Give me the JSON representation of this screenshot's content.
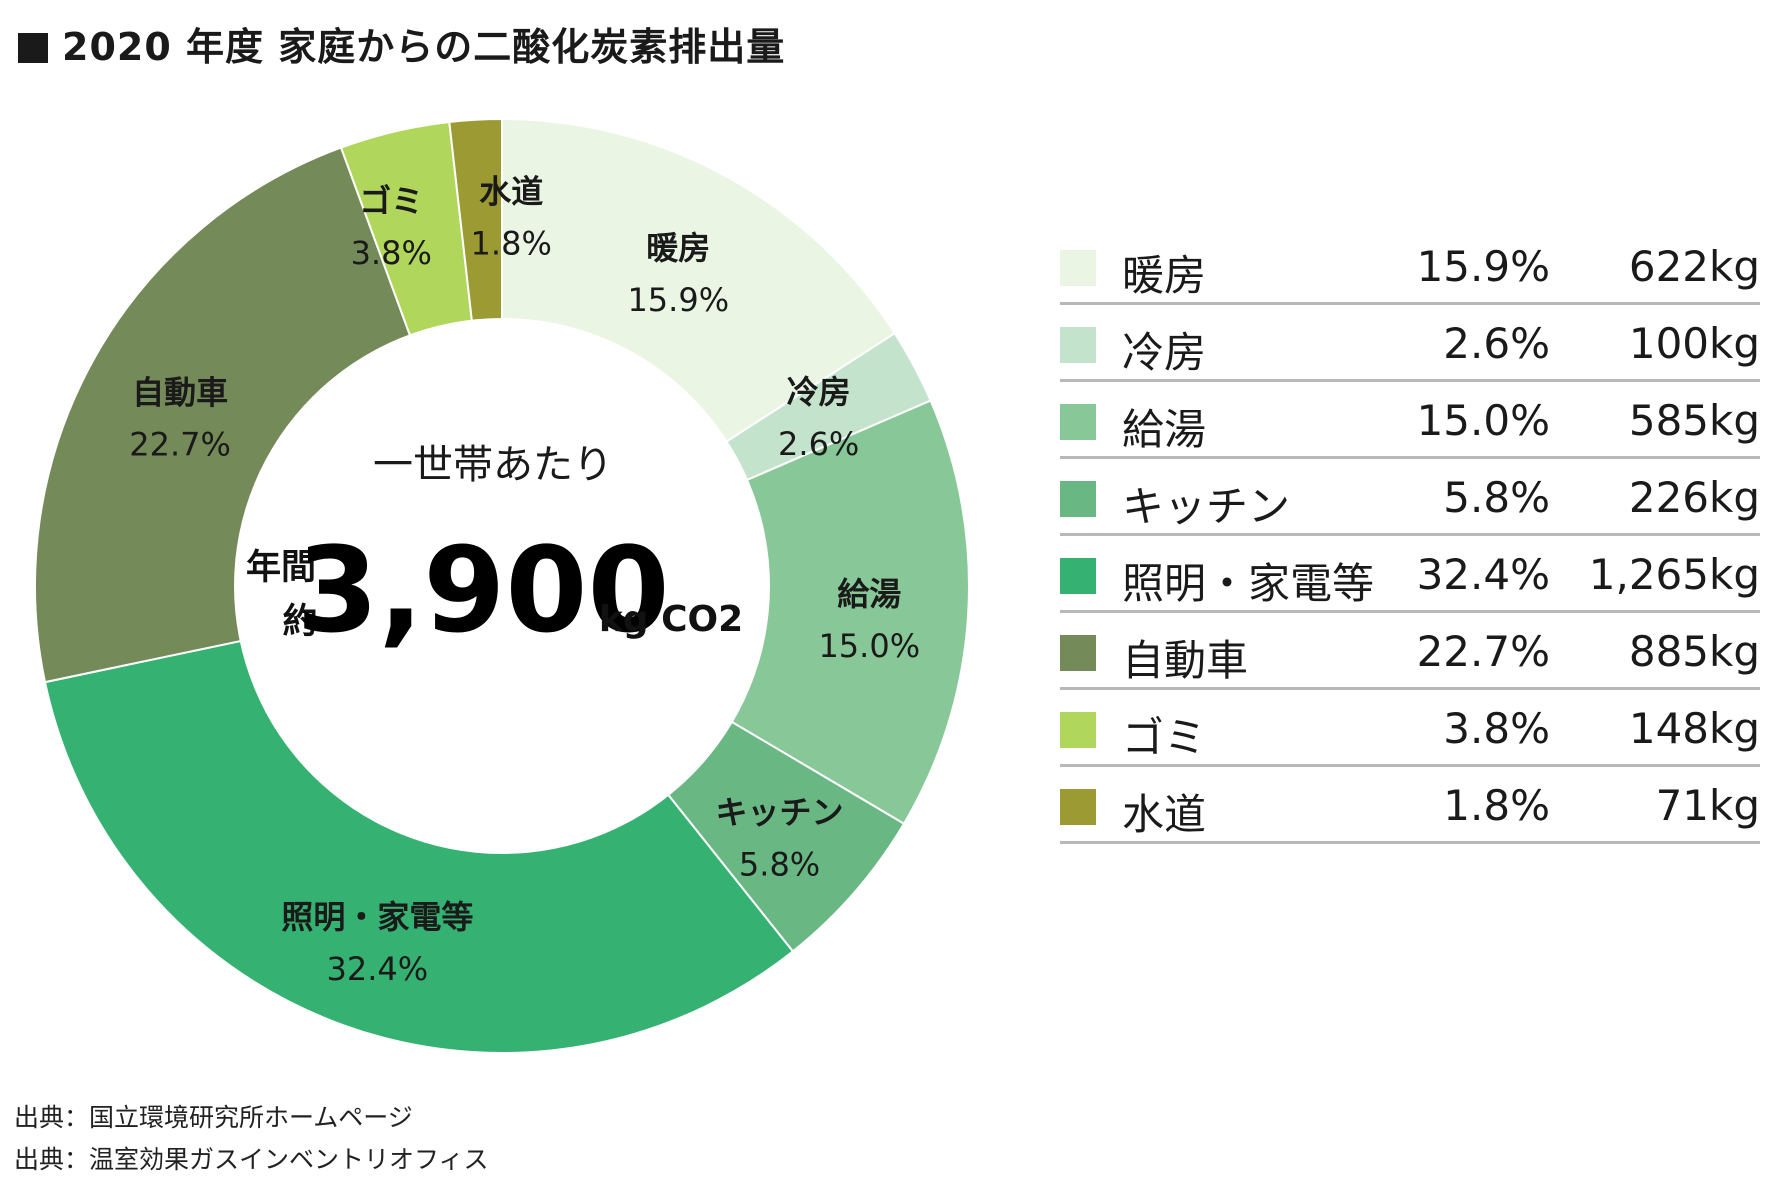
{
  "title": "2020 年度 家庭からの二酸化炭素排出量",
  "center": {
    "subtitle": "一世帯あたり",
    "label_top": "年間",
    "label_bottom": "約",
    "value": "3,900",
    "unit": "kg CO2"
  },
  "chart_data": {
    "type": "pie",
    "title": "2020 年度 家庭からの二酸化炭素排出量",
    "categories": [
      "暖房",
      "冷房",
      "給湯",
      "キッチン",
      "照明・家電等",
      "自動車",
      "ゴミ",
      "水道"
    ],
    "values": [
      15.9,
      2.6,
      15.0,
      5.8,
      32.4,
      22.7,
      3.8,
      1.8
    ],
    "value_labels": [
      "15.9%",
      "2.6%",
      "15.0%",
      "5.8%",
      "32.4%",
      "22.7%",
      "3.8%",
      "1.8%"
    ],
    "kg_labels": [
      "622kg",
      "100kg",
      "585kg",
      "226kg",
      "1,265kg",
      "885kg",
      "148kg",
      "71kg"
    ],
    "colors": [
      "#eaf5e4",
      "#c3e3cd",
      "#88c797",
      "#69b884",
      "#35b272",
      "#748a58",
      "#b0d65c",
      "#9c9a32"
    ],
    "donut": true,
    "legend_position": "right"
  },
  "sources": [
    "出典：国立環境研究所ホームページ",
    "出典：温室効果ガスインベントリオフィス"
  ]
}
